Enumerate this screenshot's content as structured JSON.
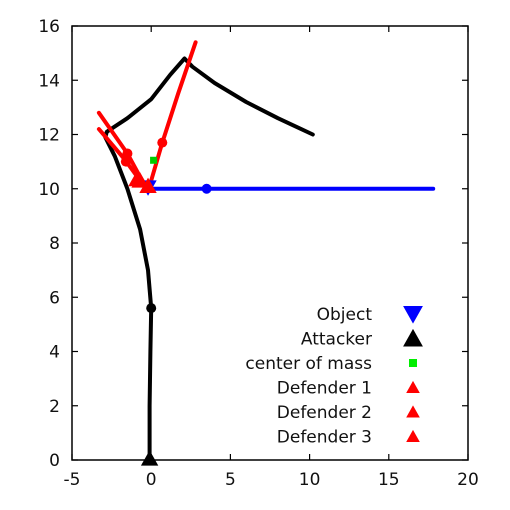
{
  "chart_data": {
    "type": "line",
    "xlim": [
      -5,
      20
    ],
    "ylim": [
      0,
      16
    ],
    "x_ticks": [
      -5,
      0,
      5,
      10,
      15,
      20
    ],
    "y_ticks": [
      0,
      2,
      4,
      6,
      8,
      10,
      12,
      14,
      16
    ],
    "x_tick_labels": [
      "-5",
      "0",
      "5",
      "10",
      "15",
      "20"
    ],
    "y_tick_labels": [
      "0",
      "2",
      "4",
      "6",
      "8",
      "10",
      "12",
      "14",
      "16"
    ],
    "grid": false,
    "legend_position": "bottom-right",
    "colors": {
      "object": "#0000ff",
      "attacker": "#000000",
      "center_of_mass": "#00cc00",
      "defender": "#ff0000"
    },
    "trajectories": [
      {
        "role": "attacker-path",
        "color": "#000000",
        "points": [
          [
            -0.1,
            0
          ],
          [
            -0.1,
            2
          ],
          [
            -0.05,
            4
          ],
          [
            0,
            5.6
          ],
          [
            -0.2,
            7
          ],
          [
            -0.7,
            8.5
          ],
          [
            -1.5,
            10
          ],
          [
            -2.3,
            11.2
          ],
          [
            -2.9,
            11.9
          ],
          [
            -2.8,
            12.1
          ],
          [
            -1.5,
            12.6
          ],
          [
            0,
            13.3
          ],
          [
            1.2,
            14.2
          ],
          [
            2.1,
            14.8
          ],
          [
            2.6,
            14.5
          ],
          [
            4,
            13.9
          ],
          [
            6,
            13.2
          ],
          [
            8,
            12.6
          ],
          [
            10.2,
            12
          ]
        ]
      },
      {
        "role": "object-path",
        "color": "#0000ff",
        "points": [
          [
            0,
            10
          ],
          [
            3.5,
            10
          ],
          [
            8,
            10
          ],
          [
            13,
            10
          ],
          [
            17.8,
            10
          ]
        ]
      },
      {
        "role": "defender-path",
        "color": "#ff0000",
        "points": [
          [
            -0.2,
            9.9
          ],
          [
            0.7,
            11.7
          ],
          [
            1.7,
            13.5
          ],
          [
            2.8,
            15.4
          ]
        ]
      },
      {
        "role": "defender-path",
        "color": "#ff0000",
        "points": [
          [
            -0.2,
            9.9
          ],
          [
            -1.7,
            11.1
          ],
          [
            -3.3,
            12.2
          ]
        ]
      },
      {
        "role": "defender-path",
        "color": "#ff0000",
        "points": [
          [
            -0.2,
            9.9
          ],
          [
            -1.5,
            11.3
          ],
          [
            -3.3,
            12.8
          ]
        ]
      }
    ],
    "intermediate_markers": [
      {
        "color": "#000000",
        "x": 0,
        "y": 5.6
      },
      {
        "color": "#0000ff",
        "x": 3.5,
        "y": 10
      },
      {
        "color": "#ff0000",
        "x": 0.7,
        "y": 11.7
      },
      {
        "color": "#ff0000",
        "x": -1.5,
        "y": 11.3
      },
      {
        "color": "#ff0000",
        "x": -1.6,
        "y": 11.0
      }
    ],
    "final_markers": [
      {
        "series": "attacker",
        "shape": "triangle-up",
        "color": "#000000",
        "x": -0.1,
        "y": 0.05
      },
      {
        "series": "object",
        "shape": "triangle-down",
        "color": "#0000ff",
        "x": -0.2,
        "y": 10.05
      },
      {
        "series": "center_of_mass",
        "shape": "square",
        "color": "#00cc00",
        "x": 0.15,
        "y": 11.05
      },
      {
        "series": "defender1",
        "shape": "triangle-up",
        "color": "#ff0000",
        "x": -0.7,
        "y": 10.3
      },
      {
        "series": "defender2",
        "shape": "triangle-up",
        "color": "#ff0000",
        "x": -0.2,
        "y": 10.1
      },
      {
        "series": "defender3",
        "shape": "triangle-up",
        "color": "#ff0000",
        "x": -0.9,
        "y": 10.35
      }
    ],
    "legend": [
      {
        "label": "Object",
        "shape": "triangle-down",
        "color": "#0000ff"
      },
      {
        "label": "Attacker",
        "shape": "triangle-up",
        "color": "#000000"
      },
      {
        "label": "center of mass",
        "shape": "square",
        "color": "#00ee00"
      },
      {
        "label": "Defender 1",
        "shape": "triangle-up",
        "color": "#ff0000"
      },
      {
        "label": "Defender 2",
        "shape": "triangle-up",
        "color": "#ff0000"
      },
      {
        "label": "Defender 3",
        "shape": "triangle-up",
        "color": "#ff0000"
      }
    ]
  }
}
